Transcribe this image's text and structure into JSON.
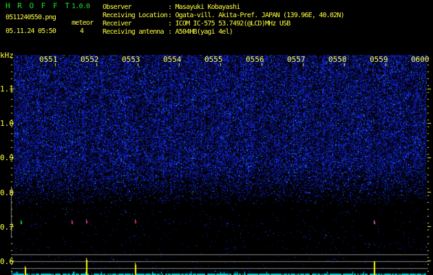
{
  "header": {
    "app_name": "H R O F F T",
    "version": "1.0.0",
    "filename": "0511240550.png",
    "datetime": "05.11.24 05:50",
    "meteor_label": "meteor",
    "meteor_count": "4"
  },
  "info": [
    {
      "label": "Observer",
      "value": ": Masayuki Kobayashi"
    },
    {
      "label": "Receiving Location",
      "value": ": Ogata-vill. Akita-Pref. JAPAN (139.96E, 40.02N)"
    },
    {
      "label": "Receiver",
      "value": ": ICOM IC-575 53.7492(@LCD)MHz USB"
    },
    {
      "label": "Receiving antenna",
      "value": ": A504HB(yagi 4el)"
    }
  ],
  "spectrogram": {
    "y_unit": "kHz",
    "y_labels": [
      "1.1",
      "1.0",
      "0.9",
      "0.8",
      "0.7",
      "0.6"
    ],
    "time_labels": [
      "0551",
      "0552",
      "0553",
      "0554",
      "0555",
      "0556",
      "0557",
      "0558",
      "0559",
      "0600"
    ],
    "colors": {
      "text": "#ffff40",
      "logo": "#20e020",
      "noise": "#1020ff",
      "spike": "#ffff00",
      "baseline": "#00e0e0"
    }
  }
}
